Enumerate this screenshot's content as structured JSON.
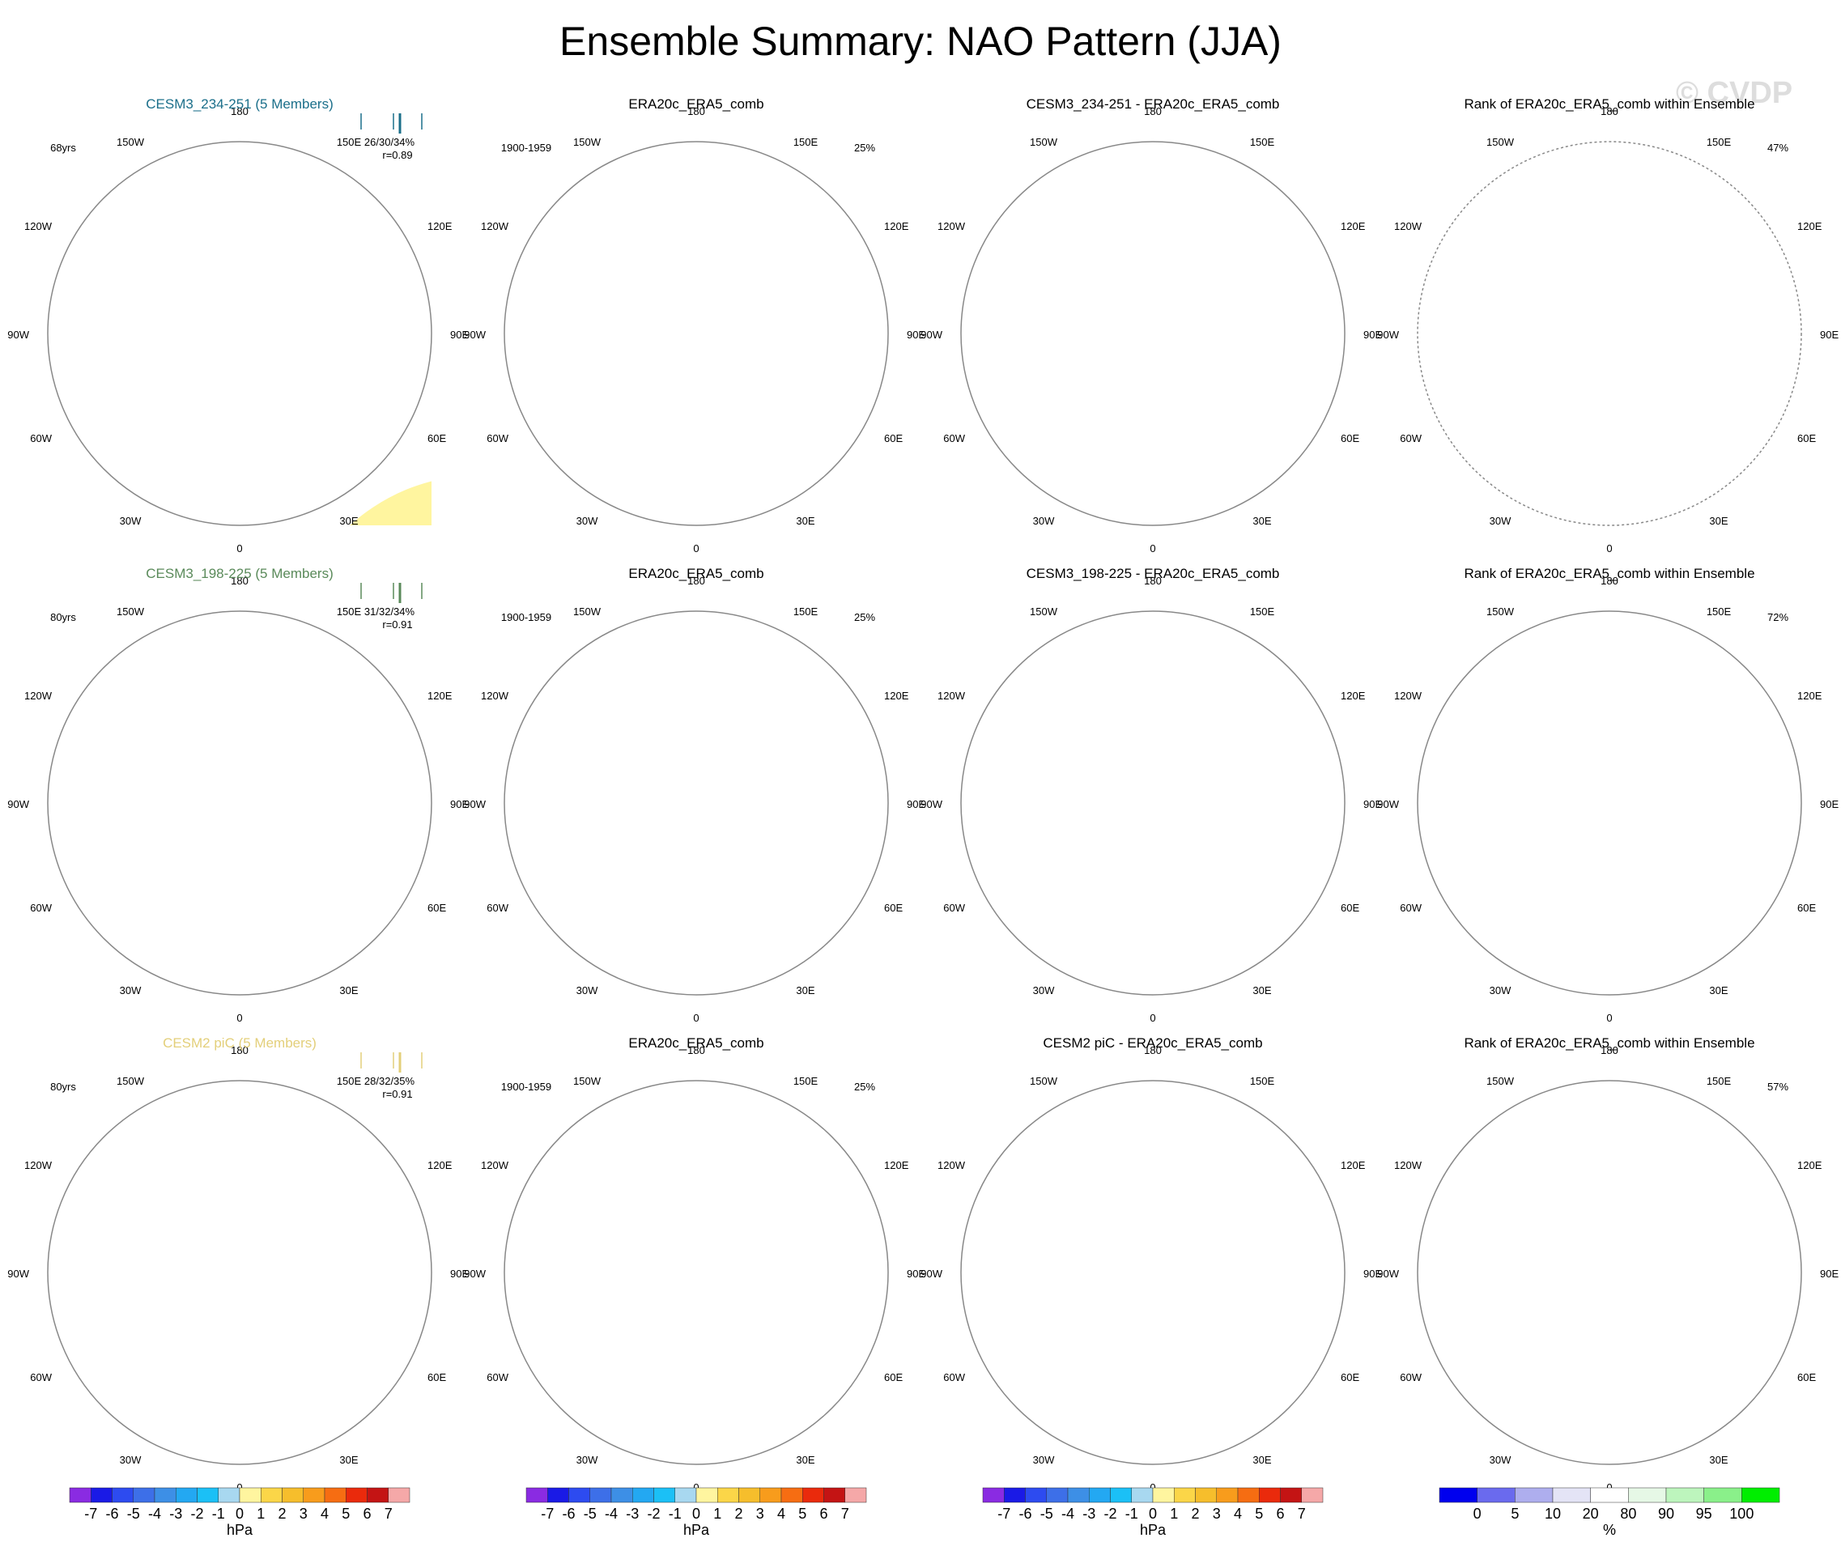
{
  "title": "Ensemble Summary: NAO Pattern (JJA)",
  "watermark": "© CVDP",
  "colors": {
    "blue_light": "#b3dbf2",
    "blue_mid": "#72c0ee",
    "blue_dark": "#3d9fe6",
    "blue_core": "#0fa9f0",
    "yellow_light": "#fff59f",
    "yellow_mid": "#fbd648",
    "yellow_dark": "#f6be2c",
    "rank_blue": "#0000ee",
    "rank_green": "#00ee00",
    "rank_pale": "#e6f8e6",
    "circle": "#888888",
    "coast": "#555555"
  },
  "longitude_labels": [
    "180",
    "150E",
    "120E",
    "90E",
    "60E",
    "30E",
    "0",
    "30W",
    "60W",
    "90W",
    "120W",
    "150W"
  ],
  "rows": [
    {
      "model_title": "CESM3_234-251 (5 Members)",
      "model_color": "#1b6f8a",
      "years": "68yrs",
      "stats": "26/30/34%",
      "r": "r=0.89",
      "obs_title": "ERA20c_ERA5_comb",
      "obs_period": "1900-1959",
      "obs_pct": "25%",
      "diff_title": "CESM3_234-251 - ERA20c_ERA5_comb",
      "rank_title": "Rank of ERA20c_ERA5_comb within Ensemble",
      "rank_pct": "47%"
    },
    {
      "model_title": "CESM3_198-225 (5 Members)",
      "model_color": "#5a8a5a",
      "years": "80yrs",
      "stats": "31/32/34%",
      "r": "r=0.91",
      "obs_title": "ERA20c_ERA5_comb",
      "obs_period": "1900-1959",
      "obs_pct": "25%",
      "diff_title": "CESM3_198-225 - ERA20c_ERA5_comb",
      "rank_title": "Rank of ERA20c_ERA5_comb within Ensemble",
      "rank_pct": "72%"
    },
    {
      "model_title": "CESM2 piC (5 Members)",
      "model_color": "#e3cf7a",
      "years": "80yrs",
      "stats": "28/32/35%",
      "r": "r=0.91",
      "obs_title": "ERA20c_ERA5_comb",
      "obs_period": "1900-1959",
      "obs_pct": "25%",
      "diff_title": "CESM2 piC - ERA20c_ERA5_comb",
      "rank_title": "Rank of ERA20c_ERA5_comb within Ensemble",
      "rank_pct": "57%"
    }
  ],
  "chart_data": {
    "type": "map-panels",
    "projection": "north polar stereographic",
    "variable": "NAO Pattern (JJA)",
    "hpa_colorbar": {
      "unit": "hPa",
      "ticks": [
        "-7",
        "-6",
        "-5",
        "-4",
        "-3",
        "-2",
        "-1",
        "0",
        "1",
        "2",
        "3",
        "4",
        "5",
        "6",
        "7"
      ],
      "colors": [
        "#8a2be2",
        "#1a1ae6",
        "#2d4bf0",
        "#3d6fe8",
        "#3d8fe6",
        "#23a8f2",
        "#1bc0f6",
        "#a8d8f0",
        "#fff59f",
        "#fbd648",
        "#f6be2c",
        "#f89c1c",
        "#f66d12",
        "#ea2a0c",
        "#c41414",
        "#f5a8a8"
      ]
    },
    "rank_colorbar": {
      "unit": "%",
      "ticks": [
        "0",
        "5",
        "10",
        "20",
        "80",
        "90",
        "95",
        "100"
      ],
      "colors": [
        "#0000ee",
        "#6a6aee",
        "#aeaeee",
        "#e4e4f6",
        "#ffffff",
        "#e6f8e6",
        "#bdf5bd",
        "#8af08a",
        "#00ee00"
      ]
    }
  }
}
